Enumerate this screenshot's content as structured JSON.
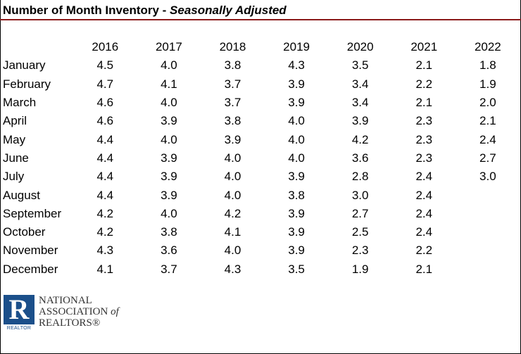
{
  "header": {
    "title": "Number of Month Inventory - ",
    "subtitle": "Seasonally Adjusted"
  },
  "table": {
    "years": [
      "2016",
      "2017",
      "2018",
      "2019",
      "2020",
      "2021",
      "2022"
    ],
    "rows": [
      {
        "month": "January",
        "values": [
          "4.5",
          "4.0",
          "3.8",
          "4.3",
          "3.5",
          "2.1",
          "1.8"
        ]
      },
      {
        "month": "February",
        "values": [
          "4.7",
          "4.1",
          "3.7",
          "3.9",
          "3.4",
          "2.2",
          "1.9"
        ]
      },
      {
        "month": "March",
        "values": [
          "4.6",
          "4.0",
          "3.7",
          "3.9",
          "3.4",
          "2.1",
          "2.0"
        ]
      },
      {
        "month": "April",
        "values": [
          "4.6",
          "3.9",
          "3.8",
          "4.0",
          "3.9",
          "2.3",
          "2.1"
        ]
      },
      {
        "month": "May",
        "values": [
          "4.4",
          "4.0",
          "3.9",
          "4.0",
          "4.2",
          "2.3",
          "2.4"
        ]
      },
      {
        "month": "June",
        "values": [
          "4.4",
          "3.9",
          "4.0",
          "4.0",
          "3.6",
          "2.3",
          "2.7"
        ]
      },
      {
        "month": "July",
        "values": [
          "4.4",
          "3.9",
          "4.0",
          "3.9",
          "2.8",
          "2.4",
          "3.0"
        ]
      },
      {
        "month": "August",
        "values": [
          "4.4",
          "3.9",
          "4.0",
          "3.8",
          "3.0",
          "2.4",
          ""
        ]
      },
      {
        "month": "September",
        "values": [
          "4.2",
          "4.0",
          "4.2",
          "3.9",
          "2.7",
          "2.4",
          ""
        ]
      },
      {
        "month": "October",
        "values": [
          "4.2",
          "3.8",
          "4.1",
          "3.9",
          "2.5",
          "2.4",
          ""
        ]
      },
      {
        "month": "November",
        "values": [
          "4.3",
          "3.6",
          "4.0",
          "3.9",
          "2.3",
          "2.2",
          ""
        ]
      },
      {
        "month": "December",
        "values": [
          "4.1",
          "3.7",
          "4.3",
          "3.5",
          "1.9",
          "2.1",
          ""
        ]
      }
    ]
  },
  "logo": {
    "mark": "R",
    "badge_text": "REALTOR",
    "line1": "NATIONAL",
    "line2_main": "ASSOCIATION ",
    "line2_of": "of",
    "line3": "REALTORS®"
  },
  "colors": {
    "title_rule": "#8b1a1a",
    "logo_blue": "#1b4f8a"
  }
}
